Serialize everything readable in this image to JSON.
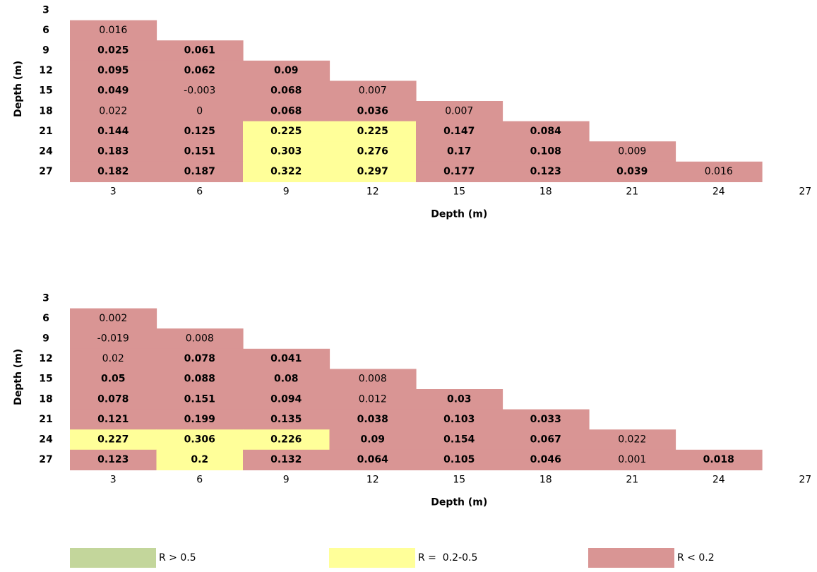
{
  "colors": {
    "high": "#c3d69b",
    "mid": "#ffff99",
    "low": "#d99594"
  },
  "legend": [
    {
      "label": "R > 0.5",
      "color_key": "high"
    },
    {
      "label": "R =  0.2-0.5",
      "color_key": "mid"
    },
    {
      "label": "R < 0.2",
      "color_key": "low"
    }
  ],
  "chart_data": [
    {
      "type": "heatmap",
      "ylabel": "Depth (m)",
      "xlabel": "Depth (m)",
      "y_ticks": [
        "3",
        "6",
        "9",
        "12",
        "15",
        "18",
        "21",
        "24",
        "27"
      ],
      "x_ticks": [
        "3",
        "6",
        "9",
        "12",
        "15",
        "18",
        "21",
        "24",
        "27"
      ],
      "rows": [
        {
          "depth": "6",
          "cells": [
            {
              "v": "0.016",
              "bold": false,
              "cat": "low"
            }
          ]
        },
        {
          "depth": "9",
          "cells": [
            {
              "v": "0.025",
              "bold": true,
              "cat": "low"
            },
            {
              "v": "0.061",
              "bold": true,
              "cat": "low"
            }
          ]
        },
        {
          "depth": "12",
          "cells": [
            {
              "v": "0.095",
              "bold": true,
              "cat": "low"
            },
            {
              "v": "0.062",
              "bold": true,
              "cat": "low"
            },
            {
              "v": "0.09",
              "bold": true,
              "cat": "low"
            }
          ]
        },
        {
          "depth": "15",
          "cells": [
            {
              "v": "0.049",
              "bold": true,
              "cat": "low"
            },
            {
              "v": "-0.003",
              "bold": false,
              "cat": "low"
            },
            {
              "v": "0.068",
              "bold": true,
              "cat": "low"
            },
            {
              "v": "0.007",
              "bold": false,
              "cat": "low"
            }
          ]
        },
        {
          "depth": "18",
          "cells": [
            {
              "v": "0.022",
              "bold": false,
              "cat": "low"
            },
            {
              "v": "0",
              "bold": false,
              "cat": "low"
            },
            {
              "v": "0.068",
              "bold": true,
              "cat": "low"
            },
            {
              "v": "0.036",
              "bold": true,
              "cat": "low"
            },
            {
              "v": "0.007",
              "bold": false,
              "cat": "low"
            }
          ]
        },
        {
          "depth": "21",
          "cells": [
            {
              "v": "0.144",
              "bold": true,
              "cat": "low"
            },
            {
              "v": "0.125",
              "bold": true,
              "cat": "low"
            },
            {
              "v": "0.225",
              "bold": true,
              "cat": "mid"
            },
            {
              "v": "0.225",
              "bold": true,
              "cat": "mid"
            },
            {
              "v": "0.147",
              "bold": true,
              "cat": "low"
            },
            {
              "v": "0.084",
              "bold": true,
              "cat": "low"
            }
          ]
        },
        {
          "depth": "24",
          "cells": [
            {
              "v": "0.183",
              "bold": true,
              "cat": "low"
            },
            {
              "v": "0.151",
              "bold": true,
              "cat": "low"
            },
            {
              "v": "0.303",
              "bold": true,
              "cat": "mid"
            },
            {
              "v": "0.276",
              "bold": true,
              "cat": "mid"
            },
            {
              "v": "0.17",
              "bold": true,
              "cat": "low"
            },
            {
              "v": "0.108",
              "bold": true,
              "cat": "low"
            },
            {
              "v": "0.009",
              "bold": false,
              "cat": "low"
            }
          ]
        },
        {
          "depth": "27",
          "cells": [
            {
              "v": "0.182",
              "bold": true,
              "cat": "low"
            },
            {
              "v": "0.187",
              "bold": true,
              "cat": "low"
            },
            {
              "v": "0.322",
              "bold": true,
              "cat": "mid"
            },
            {
              "v": "0.297",
              "bold": true,
              "cat": "mid"
            },
            {
              "v": "0.177",
              "bold": true,
              "cat": "low"
            },
            {
              "v": "0.123",
              "bold": true,
              "cat": "low"
            },
            {
              "v": "0.039",
              "bold": true,
              "cat": "low"
            },
            {
              "v": "0.016",
              "bold": false,
              "cat": "low"
            }
          ]
        }
      ]
    },
    {
      "type": "heatmap",
      "ylabel": "Depth (m)",
      "xlabel": "Depth (m)",
      "y_ticks": [
        "3",
        "6",
        "9",
        "12",
        "15",
        "18",
        "21",
        "24",
        "27"
      ],
      "x_ticks": [
        "3",
        "6",
        "9",
        "12",
        "15",
        "18",
        "21",
        "24",
        "27"
      ],
      "rows": [
        {
          "depth": "6",
          "cells": [
            {
              "v": "0.002",
              "bold": false,
              "cat": "low"
            }
          ]
        },
        {
          "depth": "9",
          "cells": [
            {
              "v": "-0.019",
              "bold": false,
              "cat": "low"
            },
            {
              "v": "0.008",
              "bold": false,
              "cat": "low"
            }
          ]
        },
        {
          "depth": "12",
          "cells": [
            {
              "v": "0.02",
              "bold": false,
              "cat": "low"
            },
            {
              "v": "0.078",
              "bold": true,
              "cat": "low"
            },
            {
              "v": "0.041",
              "bold": true,
              "cat": "low"
            }
          ]
        },
        {
          "depth": "15",
          "cells": [
            {
              "v": "0.05",
              "bold": true,
              "cat": "low"
            },
            {
              "v": "0.088",
              "bold": true,
              "cat": "low"
            },
            {
              "v": "0.08",
              "bold": true,
              "cat": "low"
            },
            {
              "v": "0.008",
              "bold": false,
              "cat": "low"
            }
          ]
        },
        {
          "depth": "18",
          "cells": [
            {
              "v": "0.078",
              "bold": true,
              "cat": "low"
            },
            {
              "v": "0.151",
              "bold": true,
              "cat": "low"
            },
            {
              "v": "0.094",
              "bold": true,
              "cat": "low"
            },
            {
              "v": "0.012",
              "bold": false,
              "cat": "low"
            },
            {
              "v": "0.03",
              "bold": true,
              "cat": "low"
            }
          ]
        },
        {
          "depth": "21",
          "cells": [
            {
              "v": "0.121",
              "bold": true,
              "cat": "low"
            },
            {
              "v": "0.199",
              "bold": true,
              "cat": "low"
            },
            {
              "v": "0.135",
              "bold": true,
              "cat": "low"
            },
            {
              "v": "0.038",
              "bold": true,
              "cat": "low"
            },
            {
              "v": "0.103",
              "bold": true,
              "cat": "low"
            },
            {
              "v": "0.033",
              "bold": true,
              "cat": "low"
            }
          ]
        },
        {
          "depth": "24",
          "cells": [
            {
              "v": "0.227",
              "bold": true,
              "cat": "mid"
            },
            {
              "v": "0.306",
              "bold": true,
              "cat": "mid"
            },
            {
              "v": "0.226",
              "bold": true,
              "cat": "mid"
            },
            {
              "v": "0.09",
              "bold": true,
              "cat": "low"
            },
            {
              "v": "0.154",
              "bold": true,
              "cat": "low"
            },
            {
              "v": "0.067",
              "bold": true,
              "cat": "low"
            },
            {
              "v": "0.022",
              "bold": false,
              "cat": "low"
            }
          ]
        },
        {
          "depth": "27",
          "cells": [
            {
              "v": "0.123",
              "bold": true,
              "cat": "low"
            },
            {
              "v": "0.2",
              "bold": true,
              "cat": "mid"
            },
            {
              "v": "0.132",
              "bold": true,
              "cat": "low"
            },
            {
              "v": "0.064",
              "bold": true,
              "cat": "low"
            },
            {
              "v": "0.105",
              "bold": true,
              "cat": "low"
            },
            {
              "v": "0.046",
              "bold": true,
              "cat": "low"
            },
            {
              "v": "0.001",
              "bold": false,
              "cat": "low"
            },
            {
              "v": "0.018",
              "bold": true,
              "cat": "low"
            }
          ]
        }
      ]
    }
  ]
}
